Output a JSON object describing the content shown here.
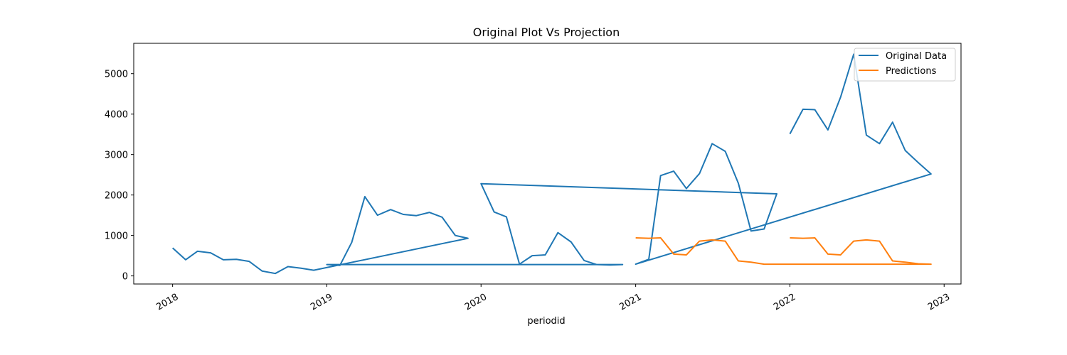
{
  "chart_data": {
    "type": "line",
    "title": "Original Plot Vs Projection",
    "xlabel": "periodid",
    "ylabel": "",
    "xlim": [
      "2017-10-01",
      "2023-02-10"
    ],
    "ylim": [
      -200,
      5750
    ],
    "x_ticks": [
      "2018",
      "2019",
      "2020",
      "2021",
      "2022",
      "2023"
    ],
    "y_ticks": [
      0,
      1000,
      2000,
      3000,
      4000,
      5000
    ],
    "grid": false,
    "legend_position": "top-right",
    "series": [
      {
        "name": "Original Data",
        "color": "#1f77b4",
        "points": [
          [
            "2018-01-01",
            690
          ],
          [
            "2018-02-01",
            400
          ],
          [
            "2018-03-01",
            610
          ],
          [
            "2018-04-01",
            570
          ],
          [
            "2018-05-01",
            400
          ],
          [
            "2018-06-01",
            410
          ],
          [
            "2018-07-01",
            360
          ],
          [
            "2018-08-01",
            120
          ],
          [
            "2018-09-01",
            60
          ],
          [
            "2018-10-01",
            230
          ],
          [
            "2018-11-01",
            190
          ],
          [
            "2018-12-01",
            140
          ],
          [
            "2019-12-01",
            930
          ],
          [
            "2019-11-01",
            1000
          ],
          [
            "2019-10-01",
            1450
          ],
          [
            "2019-09-01",
            1570
          ],
          [
            "2019-08-01",
            1490
          ],
          [
            "2019-07-01",
            1520
          ],
          [
            "2019-06-01",
            1640
          ],
          [
            "2019-05-01",
            1500
          ],
          [
            "2019-04-01",
            1960
          ],
          [
            "2019-03-01",
            830
          ],
          [
            "2019-02-01",
            260
          ],
          [
            "2019-01-01",
            280
          ],
          [
            "2020-12-01",
            280
          ],
          [
            "2020-11-01",
            270
          ],
          [
            "2020-10-01",
            280
          ],
          [
            "2020-09-01",
            380
          ],
          [
            "2020-08-01",
            840
          ],
          [
            "2020-07-01",
            1070
          ],
          [
            "2020-06-01",
            520
          ],
          [
            "2020-05-01",
            500
          ],
          [
            "2020-04-01",
            290
          ],
          [
            "2020-03-01",
            1460
          ],
          [
            "2020-02-01",
            1580
          ],
          [
            "2020-01-01",
            2280
          ],
          [
            "2021-12-01",
            2030
          ],
          [
            "2021-11-01",
            1160
          ],
          [
            "2021-10-01",
            1110
          ],
          [
            "2021-09-01",
            2290
          ],
          [
            "2021-08-01",
            3080
          ],
          [
            "2021-07-01",
            3270
          ],
          [
            "2021-06-01",
            2530
          ],
          [
            "2021-05-01",
            2160
          ],
          [
            "2021-04-01",
            2590
          ],
          [
            "2021-03-01",
            2480
          ],
          [
            "2021-02-01",
            410
          ],
          [
            "2021-01-01",
            290
          ],
          [
            "2022-12-01",
            2520
          ],
          [
            "2022-11-01",
            2800
          ],
          [
            "2022-10-01",
            3100
          ],
          [
            "2022-09-01",
            3800
          ],
          [
            "2022-08-01",
            3270
          ],
          [
            "2022-07-01",
            3480
          ],
          [
            "2022-06-01",
            5480
          ],
          [
            "2022-05-01",
            4420
          ],
          [
            "2022-04-01",
            3610
          ],
          [
            "2022-03-01",
            4110
          ],
          [
            "2022-02-01",
            4120
          ],
          [
            "2022-01-01",
            3510
          ]
        ]
      },
      {
        "name": "Predictions",
        "color": "#ff7f0e",
        "points": [
          [
            "2021-01-01",
            940
          ],
          [
            "2021-02-01",
            930
          ],
          [
            "2021-03-01",
            940
          ],
          [
            "2021-04-01",
            540
          ],
          [
            "2021-05-01",
            520
          ],
          [
            "2021-06-01",
            860
          ],
          [
            "2021-07-01",
            890
          ],
          [
            "2021-08-01",
            860
          ],
          [
            "2021-09-01",
            370
          ],
          [
            "2021-10-01",
            340
          ],
          [
            "2021-11-01",
            290
          ],
          [
            "2021-12-01",
            290
          ],
          [
            "2022-12-01",
            290
          ],
          [
            "2022-11-01",
            300
          ],
          [
            "2022-10-01",
            340
          ],
          [
            "2022-09-01",
            370
          ],
          [
            "2022-08-01",
            860
          ],
          [
            "2022-07-01",
            890
          ],
          [
            "2022-06-01",
            860
          ],
          [
            "2022-05-01",
            520
          ],
          [
            "2022-04-01",
            540
          ],
          [
            "2022-03-01",
            940
          ],
          [
            "2022-02-01",
            930
          ],
          [
            "2022-01-01",
            940
          ]
        ]
      }
    ]
  }
}
